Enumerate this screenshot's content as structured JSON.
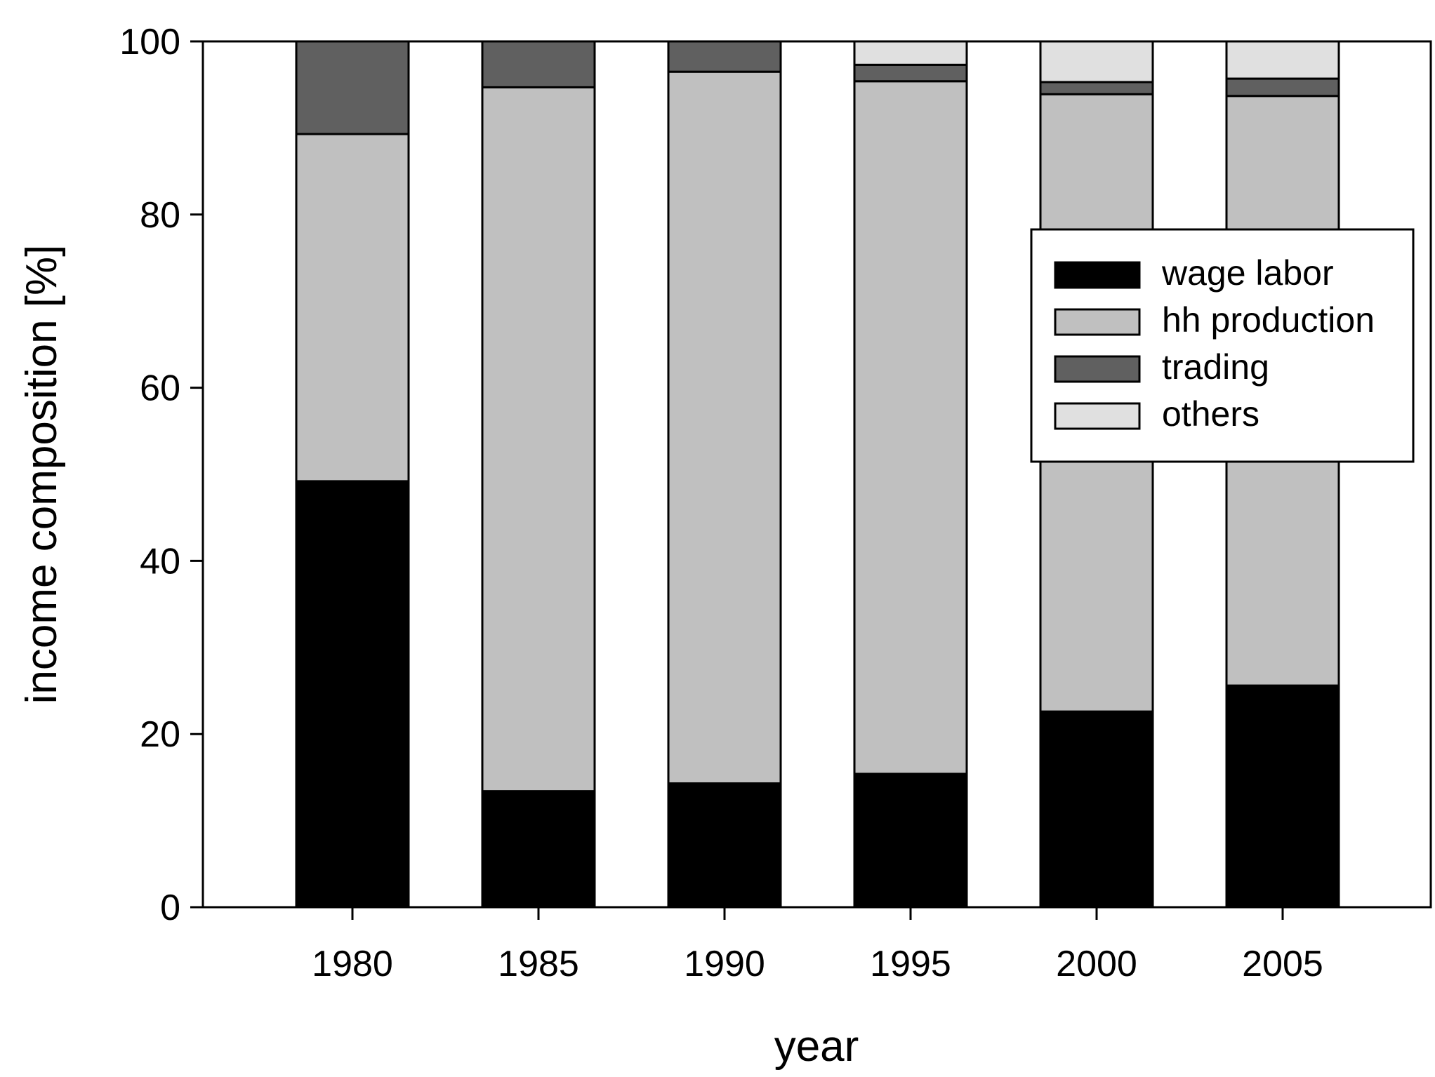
{
  "chart_data": {
    "type": "bar",
    "stacked": true,
    "xlabel": "year",
    "ylabel": "income composition [%]",
    "ylim": [
      0,
      100
    ],
    "yticks": [
      0,
      20,
      40,
      60,
      80,
      100
    ],
    "categories": [
      "1980",
      "1985",
      "1990",
      "1995",
      "2000",
      "2005"
    ],
    "series": [
      {
        "name": "wage labor",
        "color": "#000000",
        "values": [
          49.2,
          13.4,
          14.3,
          15.4,
          22.6,
          25.6
        ]
      },
      {
        "name": "hh production",
        "color": "#c0c0c0",
        "values": [
          40.1,
          81.3,
          82.2,
          80.0,
          71.3,
          68.1
        ]
      },
      {
        "name": "trading",
        "color": "#606060",
        "values": [
          10.7,
          5.3,
          3.5,
          1.9,
          1.4,
          2.0
        ]
      },
      {
        "name": "others",
        "color": "#e0e0e0",
        "values": [
          0,
          0,
          0,
          2.7,
          4.7,
          4.3
        ]
      }
    ],
    "legend_position": "upper-right",
    "grid": false
  }
}
